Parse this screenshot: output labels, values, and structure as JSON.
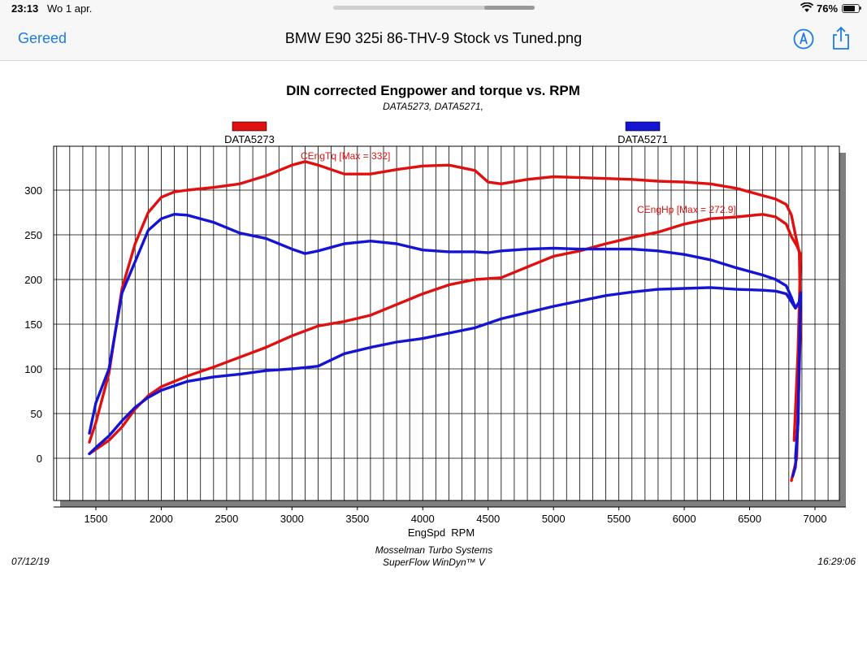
{
  "status_bar": {
    "time": "23:13",
    "date": "Wo 1 apr.",
    "battery": "76%",
    "battery_level": 0.76
  },
  "nav": {
    "done_label": "Gereed",
    "title": "BMW E90 325i 86-THV-9 Stock vs Tuned.png"
  },
  "icons": {
    "markup": "markup-pen-icon",
    "share": "share-icon",
    "wifi": "wifi-icon",
    "battery": "battery-icon"
  },
  "colors": {
    "accent": "#1a7ce6",
    "series_red": "#e01010",
    "series_blue": "#1414d2"
  },
  "chart_data": {
    "type": "line",
    "title": "DIN corrected Engpower and torque vs. RPM",
    "subtitle": "DATA5273, DATA5271,",
    "xlabel": "EngSpd  RPM",
    "ylabel": "",
    "xlim": [
      1200,
      7200
    ],
    "ylim": [
      -50,
      350
    ],
    "x_ticks": [
      "1500",
      "2000",
      "2500",
      "3000",
      "3500",
      "4000",
      "4500",
      "5000",
      "5500",
      "6000",
      "6500",
      "7000"
    ],
    "y_ticks": [
      "0",
      "50",
      "100",
      "150",
      "200",
      "250",
      "300"
    ],
    "legend": [
      {
        "name": "DATA5273",
        "color": "#e01010"
      },
      {
        "name": "DATA5271",
        "color": "#1414d2"
      }
    ],
    "annotations": {
      "torque_max": "CEngTq [Max = 332]",
      "power_max": "CEngHp [Max = 272.9]"
    },
    "footer": {
      "date": "07/12/19",
      "time": "16:29:06",
      "company": "Mosselman Turbo Systems",
      "software": "SuperFlow WinDyn™ V"
    },
    "series": [
      {
        "name": "DATA5273",
        "metric": "torque",
        "color": "#e01010",
        "x": [
          1450,
          1500,
          1600,
          1700,
          1800,
          1900,
          2000,
          2100,
          2200,
          2400,
          2600,
          2800,
          3000,
          3100,
          3200,
          3400,
          3600,
          3800,
          4000,
          4200,
          4400,
          4500,
          4600,
          4800,
          5000,
          5200,
          5400,
          5600,
          5800,
          6000,
          6200,
          6400,
          6600,
          6700,
          6780,
          6820,
          6850,
          6880,
          6890,
          6860,
          6820
        ],
        "y": [
          18,
          40,
          95,
          190,
          240,
          275,
          292,
          298,
          300,
          303,
          307,
          316,
          328,
          332,
          328,
          318,
          318,
          323,
          327,
          328,
          322,
          309,
          307,
          312,
          315,
          314,
          313,
          312,
          310,
          309,
          307,
          302,
          294,
          290,
          284,
          272,
          250,
          230,
          150,
          0,
          -25
        ]
      },
      {
        "name": "DATA5273",
        "metric": "power",
        "color": "#e01010",
        "x": [
          1450,
          1500,
          1600,
          1700,
          1800,
          1900,
          2000,
          2200,
          2400,
          2600,
          2800,
          3000,
          3200,
          3400,
          3600,
          3800,
          4000,
          4200,
          4400,
          4600,
          4800,
          5000,
          5200,
          5400,
          5600,
          5800,
          6000,
          6200,
          6400,
          6600,
          6700,
          6780,
          6820,
          6860,
          6890,
          6870,
          6840
        ],
        "y": [
          5,
          10,
          20,
          35,
          55,
          70,
          80,
          92,
          102,
          113,
          124,
          137,
          148,
          153,
          160,
          172,
          184,
          194,
          200,
          202,
          214,
          226,
          232,
          240,
          247,
          253,
          262,
          268,
          270,
          272.9,
          270,
          262,
          248,
          238,
          228,
          120,
          20
        ]
      },
      {
        "name": "DATA5271",
        "metric": "torque",
        "color": "#1414d2",
        "x": [
          1450,
          1500,
          1600,
          1700,
          1800,
          1900,
          2000,
          2100,
          2200,
          2400,
          2600,
          2800,
          3000,
          3100,
          3200,
          3400,
          3600,
          3800,
          4000,
          4200,
          4400,
          4500,
          4600,
          4800,
          5000,
          5200,
          5400,
          5600,
          5800,
          6000,
          6200,
          6400,
          6600,
          6700,
          6780,
          6820,
          6850,
          6880,
          6890,
          6870,
          6850,
          6830
        ],
        "y": [
          28,
          62,
          100,
          185,
          220,
          255,
          268,
          273,
          272,
          264,
          252,
          246,
          234,
          229,
          232,
          240,
          243,
          240,
          233,
          231,
          231,
          230,
          232,
          234,
          235,
          234,
          234,
          234,
          232,
          228,
          222,
          213,
          205,
          200,
          193,
          180,
          168,
          175,
          185,
          40,
          -10,
          -20
        ]
      },
      {
        "name": "DATA5271",
        "metric": "power",
        "color": "#1414d2",
        "x": [
          1450,
          1500,
          1600,
          1700,
          1800,
          1900,
          2000,
          2200,
          2400,
          2600,
          2800,
          3000,
          3200,
          3400,
          3600,
          3800,
          4000,
          4200,
          4400,
          4600,
          4800,
          5000,
          5200,
          5400,
          5600,
          5800,
          6000,
          6200,
          6400,
          6600,
          6700,
          6780,
          6820,
          6850,
          6880,
          6890,
          6870,
          6850
        ],
        "y": [
          5,
          12,
          25,
          42,
          57,
          68,
          76,
          86,
          91,
          94,
          98,
          100,
          103,
          117,
          124,
          130,
          134,
          140,
          146,
          156,
          163,
          170,
          176,
          182,
          186,
          189,
          190,
          191,
          189,
          188,
          187,
          184,
          175,
          168,
          175,
          185,
          40,
          0
        ]
      }
    ]
  }
}
